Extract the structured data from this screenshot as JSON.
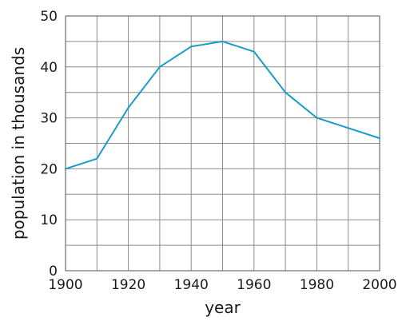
{
  "chart_data": {
    "type": "line",
    "xlabel": "year",
    "ylabel": "population in thousands",
    "xlim": [
      1900,
      2000
    ],
    "ylim": [
      0,
      50
    ],
    "x_ticks": [
      1900,
      1920,
      1940,
      1960,
      1980,
      2000
    ],
    "y_ticks": [
      0,
      10,
      20,
      30,
      40,
      50
    ],
    "x_gridlines_every": 10,
    "y_gridlines_every": 5,
    "grid": true,
    "series": [
      {
        "color": "#1a9bc7",
        "x": [
          1900,
          1910,
          1920,
          1930,
          1940,
          1950,
          1960,
          1970,
          1980,
          1990,
          2000
        ],
        "y": [
          20,
          22,
          32,
          40,
          44,
          45,
          43,
          35,
          30,
          28,
          26
        ]
      }
    ]
  }
}
